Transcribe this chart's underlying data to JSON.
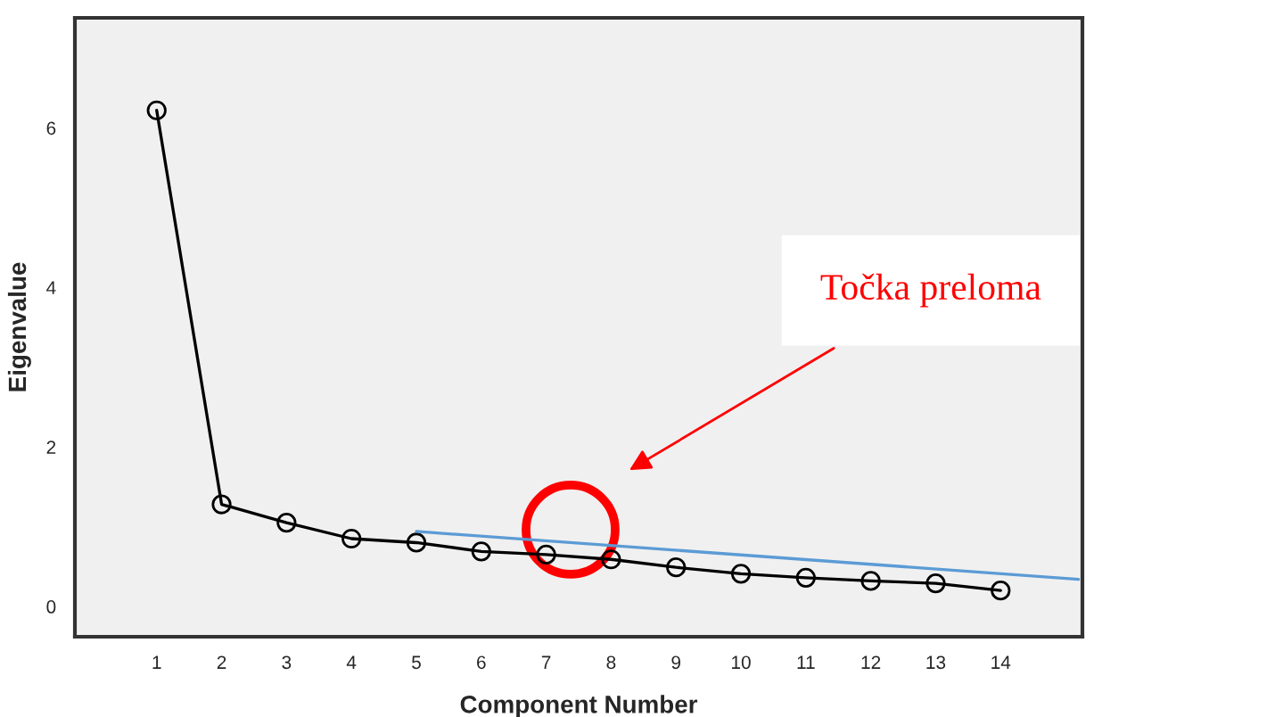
{
  "chart_data": {
    "type": "line",
    "xlabel": "Component Number",
    "ylabel": "Eigenvalue",
    "xlim": [
      -0.26,
      15.26
    ],
    "ylim": [
      -0.38,
      7.38
    ],
    "xticks": [
      1,
      2,
      3,
      4,
      5,
      6,
      7,
      8,
      9,
      10,
      11,
      12,
      13,
      14
    ],
    "yticks": [
      0,
      2,
      4,
      6
    ],
    "marker": "circle",
    "line_style": "solid",
    "series": [
      {
        "color": "#000000",
        "x": [
          1,
          2,
          3,
          4,
          5,
          6,
          7,
          8,
          9,
          10,
          11,
          12,
          13,
          14
        ],
        "values": [
          6.22,
          1.28,
          1.05,
          0.85,
          0.8,
          0.69,
          0.65,
          0.59,
          0.49,
          0.41,
          0.36,
          0.32,
          0.29,
          0.2
        ]
      },
      {
        "type": "line",
        "color": "#5b9bd5",
        "marker": "none",
        "x": [
          5,
          15.2
        ],
        "values": [
          0.94,
          0.34
        ]
      }
    ],
    "annotations": [
      "Točka preloma"
    ]
  }
}
